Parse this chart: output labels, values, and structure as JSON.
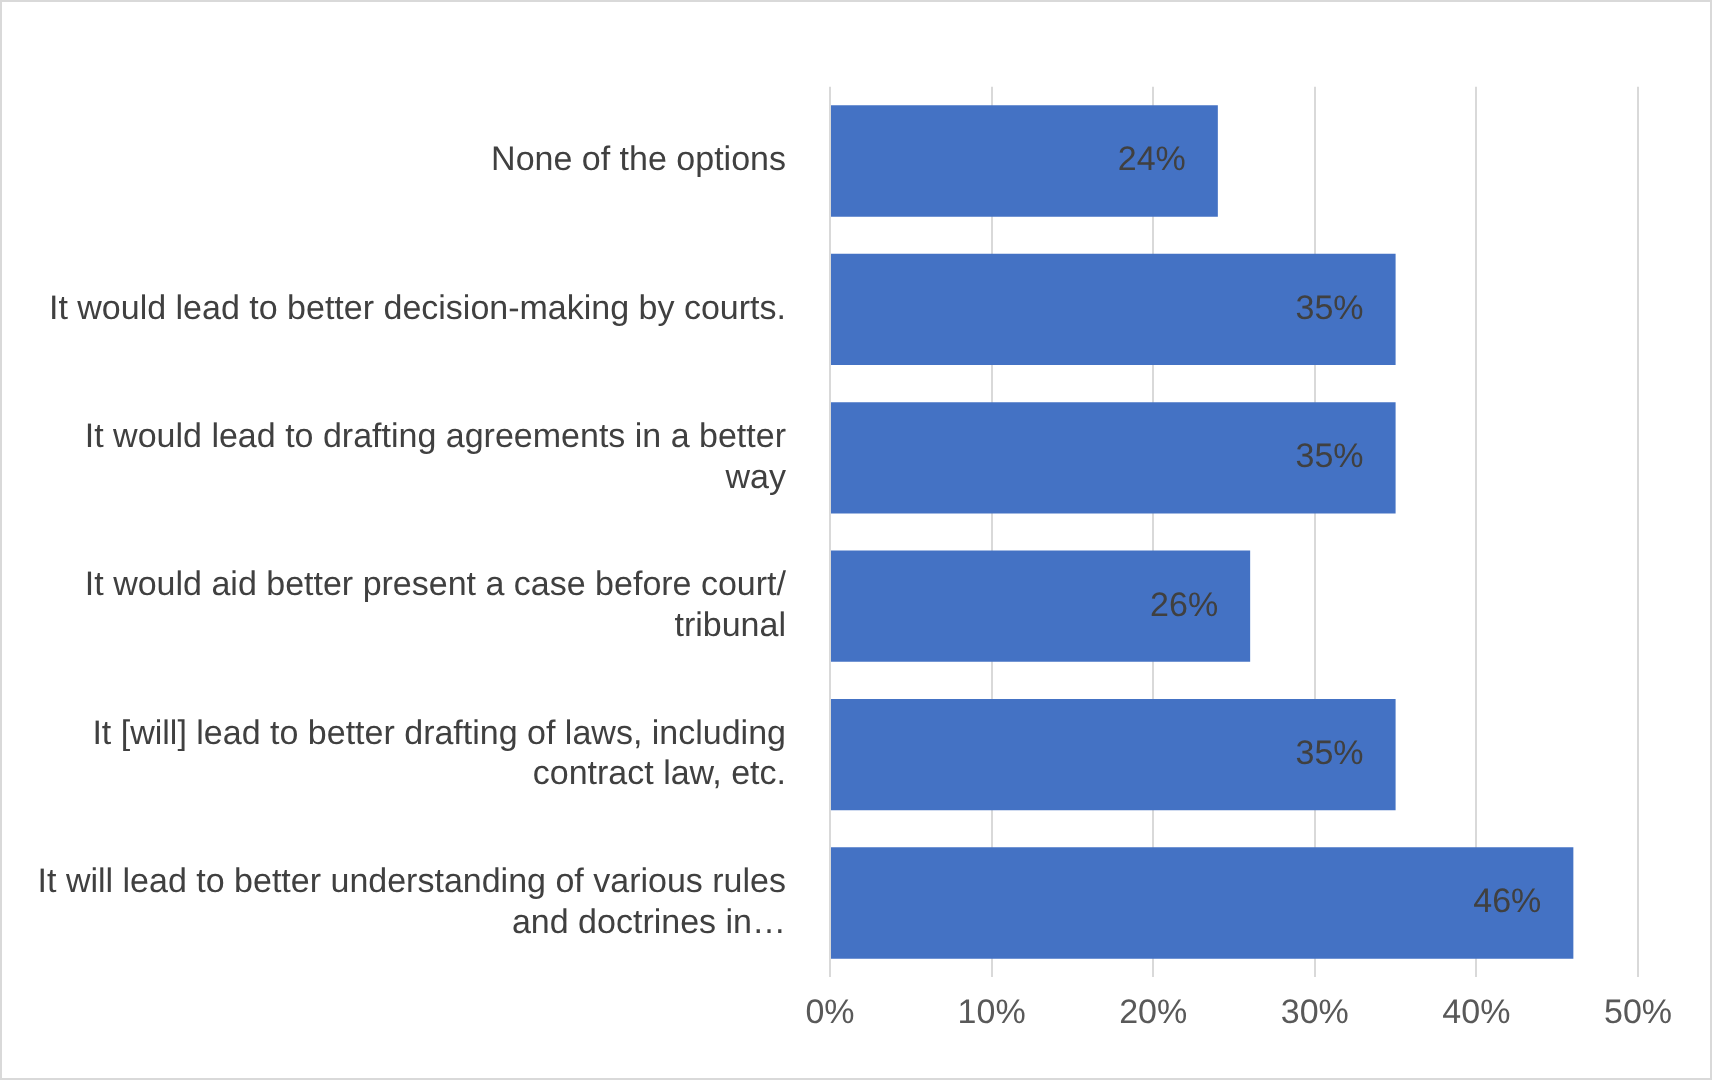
{
  "chart_data": {
    "type": "bar",
    "orientation": "horizontal",
    "categories": [
      "None of the options",
      "It would lead to better decision-making by courts.",
      "It would lead to drafting agreements in a better way",
      "It would aid better present a case before court/ tribunal",
      "It [will] lead to better drafting of laws, including contract law, etc.",
      "It will lead to better understanding of various rules and doctrines in…"
    ],
    "values": [
      24,
      35,
      35,
      26,
      35,
      46
    ],
    "value_labels": [
      "24%",
      "35%",
      "35%",
      "26%",
      "35%",
      "46%"
    ],
    "color": "#4472c4",
    "xlim": [
      0,
      50
    ],
    "xticks": [
      {
        "value": 0,
        "label": "0%"
      },
      {
        "value": 10,
        "label": "10%"
      },
      {
        "value": 20,
        "label": "20%"
      },
      {
        "value": 30,
        "label": "30%"
      },
      {
        "value": 40,
        "label": "40%"
      },
      {
        "value": 50,
        "label": "50%"
      }
    ],
    "grid": "x",
    "legend": false
  }
}
